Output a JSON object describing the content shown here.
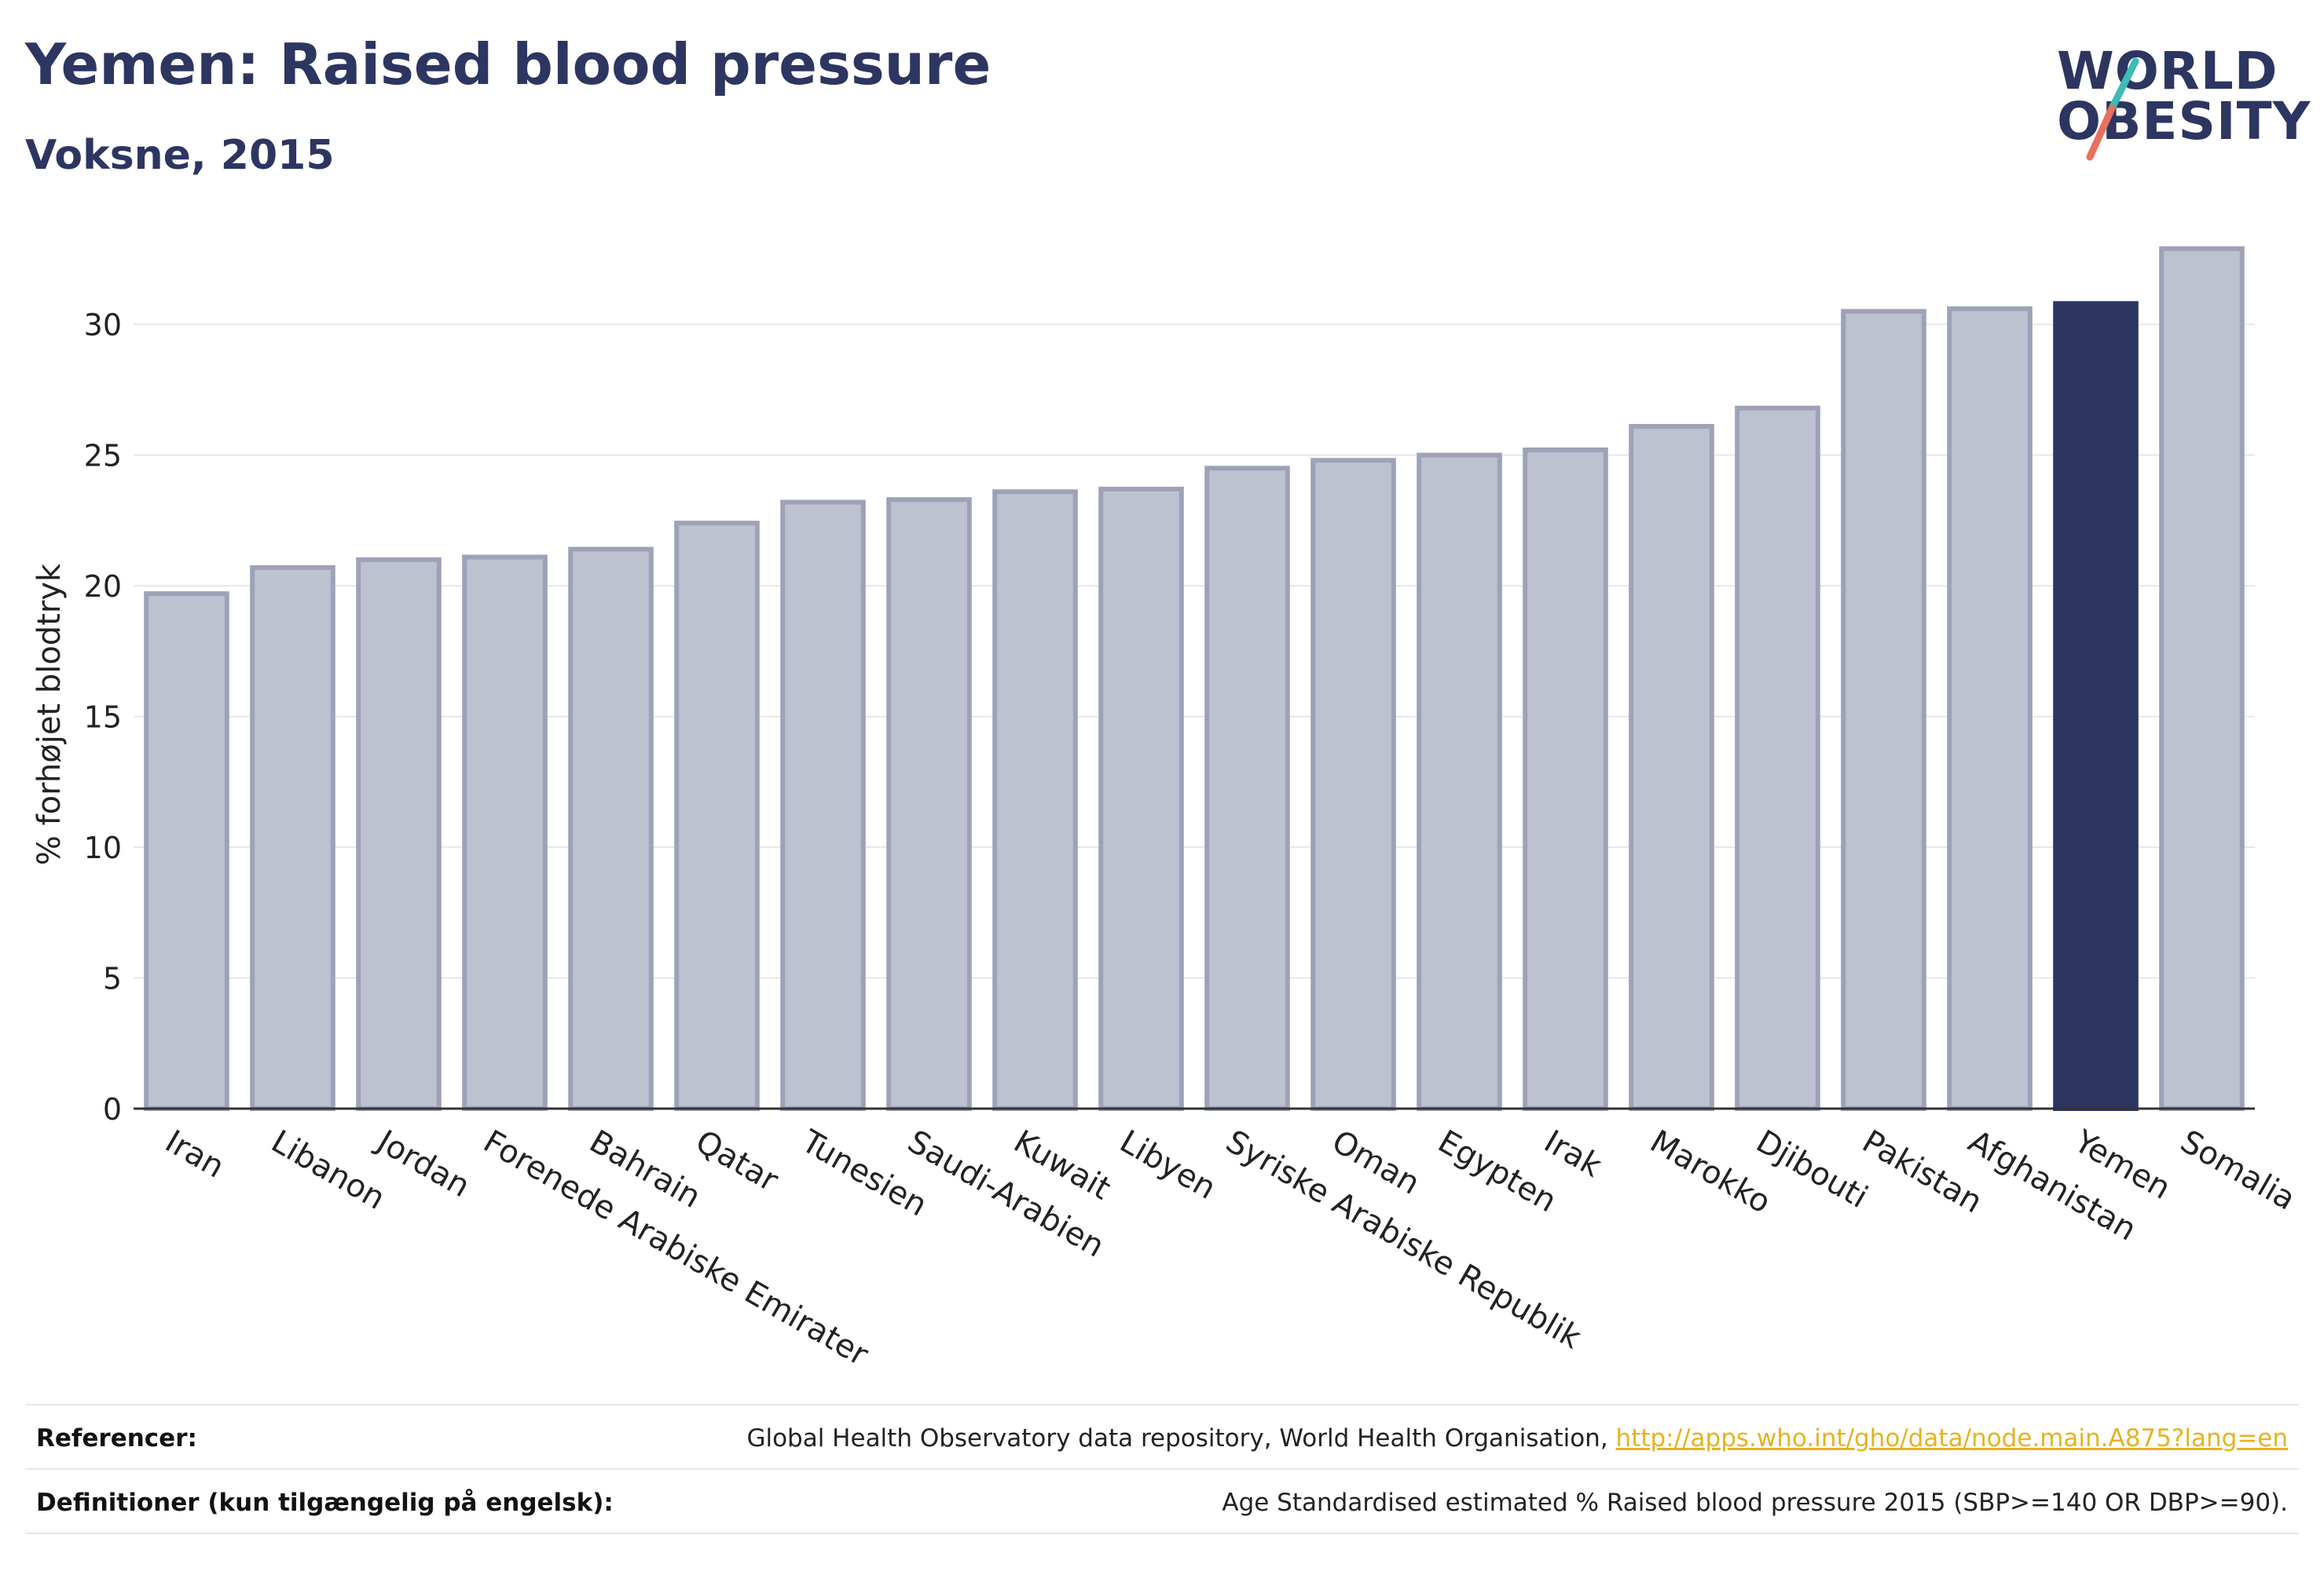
{
  "header": {
    "title": "Yemen: Raised blood pressure",
    "subtitle": "Voksne, 2015"
  },
  "logo": {
    "line1": "WORLD",
    "line2": "OBESITY"
  },
  "chart_data": {
    "type": "bar",
    "ylabel": "% forhøjet blodtryk",
    "ylim": [
      0,
      34
    ],
    "yticks": [
      0,
      5,
      10,
      15,
      20,
      25,
      30
    ],
    "grid": true,
    "categories": [
      "Iran",
      "Libanon",
      "Jordan",
      "Forenede Arabiske Emirater",
      "Bahrain",
      "Qatar",
      "Tunesien",
      "Saudi-Arabien",
      "Kuwait",
      "Libyen",
      "Syriske Arabiske Republik",
      "Oman",
      "Egypten",
      "Irak",
      "Marokko",
      "Djibouti",
      "Pakistan",
      "Afghanistan",
      "Yemen",
      "Somalia"
    ],
    "values": [
      19.7,
      20.7,
      21.0,
      21.1,
      21.4,
      22.4,
      23.2,
      23.3,
      23.6,
      23.7,
      24.5,
      24.8,
      25.0,
      25.2,
      26.1,
      26.8,
      30.5,
      30.6,
      30.8,
      32.9
    ],
    "highlight": "Yemen",
    "colors": {
      "default_fill": "#bec1cf",
      "default_stroke": "#9da2b8",
      "highlight_fill": "#2d3561",
      "grid": "#e8e8e8",
      "axis": "#333333"
    }
  },
  "footer": {
    "references_label": "Referencer:",
    "references_text": "Global Health Observatory data repository, World Health Organisation, ",
    "references_link": "http://apps.who.int/gho/data/node.main.A875?lang=en",
    "definitions_label": "Definitioner (kun tilgængelig på engelsk):",
    "definitions_text": "Age Standardised estimated % Raised blood pressure 2015 (SBP>=140 OR DBP>=90)."
  }
}
